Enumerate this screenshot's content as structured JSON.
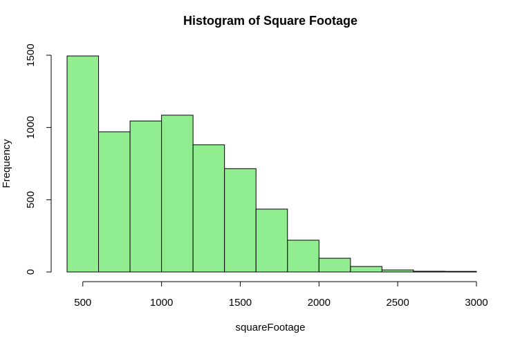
{
  "chart_data": {
    "type": "bar",
    "title": "Histogram of Square Footage",
    "xlabel": "squareFootage",
    "ylabel": "Frequency",
    "bin_edges": [
      400,
      600,
      800,
      1000,
      1200,
      1400,
      1600,
      1800,
      2000,
      2200,
      2400,
      2600,
      2800,
      3000
    ],
    "values": [
      1495,
      970,
      1045,
      1085,
      880,
      715,
      435,
      220,
      95,
      38,
      14,
      5,
      4
    ],
    "x_ticks": [
      500,
      1000,
      1500,
      2000,
      2500,
      3000
    ],
    "y_ticks": [
      0,
      500,
      1000,
      1500
    ],
    "xlim": [
      400,
      3000
    ],
    "ylim": [
      0,
      1500
    ],
    "bar_color": "#90ee90",
    "edge_color": "#000000",
    "grid": false,
    "legend": "none"
  }
}
